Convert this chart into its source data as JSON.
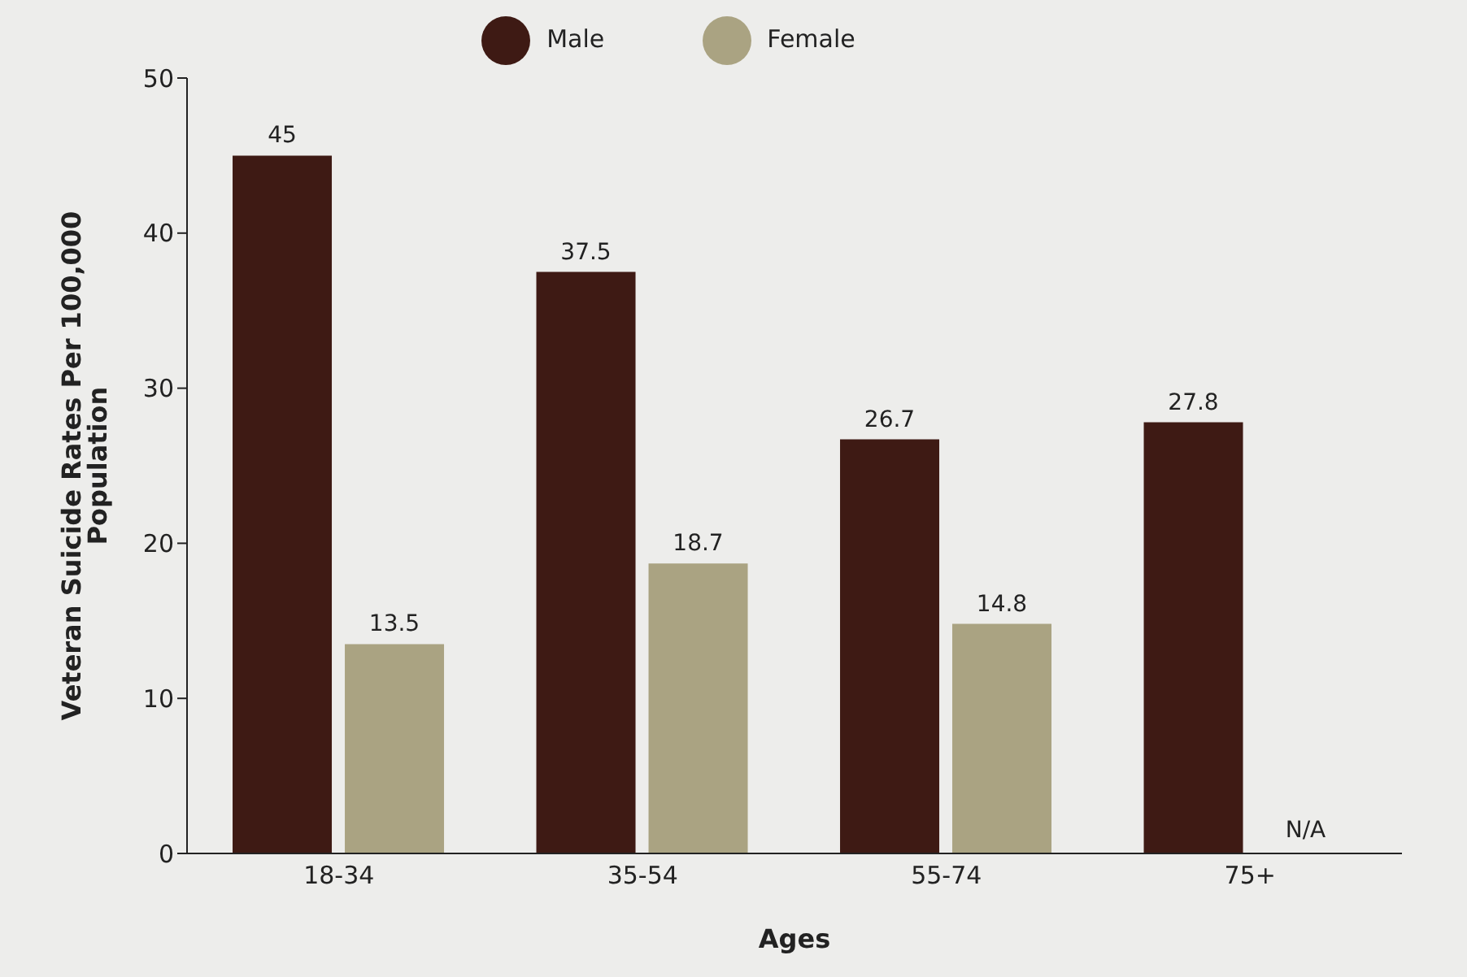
{
  "chart_data": {
    "type": "bar",
    "xlabel": "Ages",
    "ylabel": "Veteran Suicide Rates Per 100,000 Population",
    "categories": [
      "18-34",
      "35-54",
      "55-74",
      "75+"
    ],
    "series": [
      {
        "name": "Male",
        "color": "#3e1a14",
        "values": [
          45,
          37.5,
          26.7,
          27.8
        ],
        "value_labels": [
          "45",
          "37.5",
          "26.7",
          "27.8"
        ]
      },
      {
        "name": "Female",
        "color": "#aaa382",
        "values": [
          13.5,
          18.7,
          14.8,
          null
        ],
        "value_labels": [
          "13.5",
          "18.7",
          "14.8",
          "N/A"
        ]
      }
    ],
    "ylim": [
      0,
      50
    ],
    "yticks": [
      0,
      10,
      20,
      30,
      40,
      50
    ],
    "grid": false,
    "legend": "top"
  }
}
